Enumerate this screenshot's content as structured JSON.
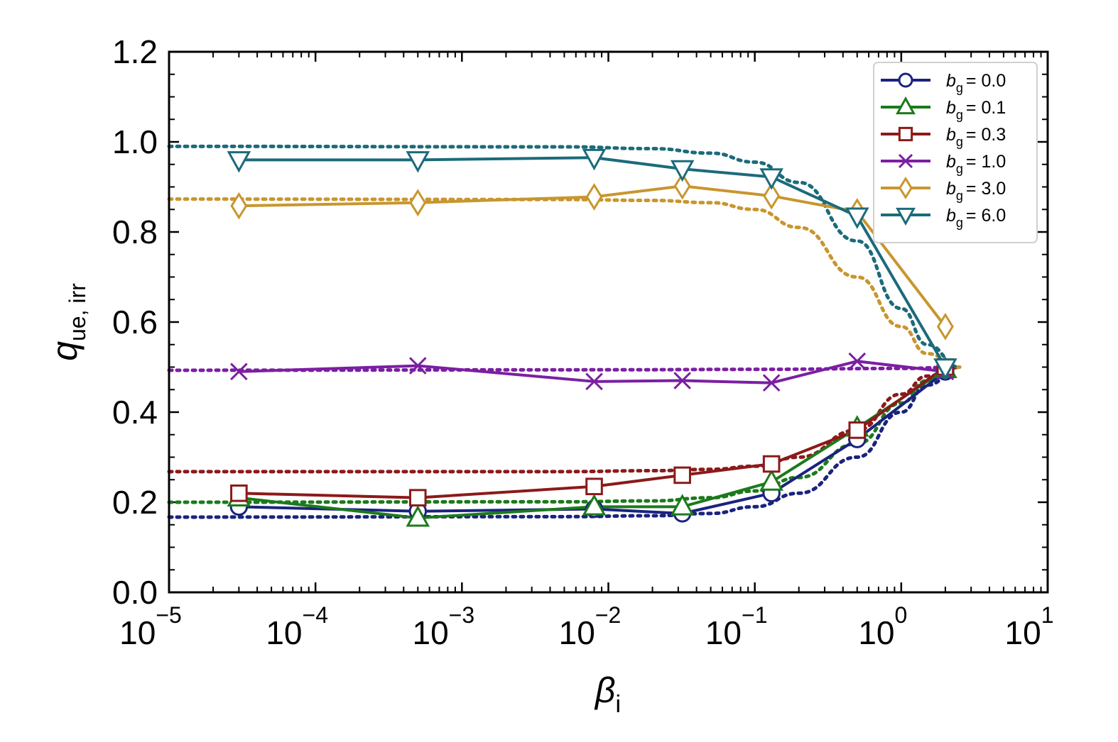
{
  "chart_data": {
    "type": "line",
    "xscale": "log",
    "xlim": [
      1e-05,
      10
    ],
    "ylim": [
      0.0,
      1.2
    ],
    "xlabel": "βi",
    "ylabel": "que, irr",
    "xlabel_parts": {
      "main": "β",
      "sub": "i"
    },
    "ylabel_parts": {
      "main": "q",
      "sub": "ue, irr"
    },
    "x_ticks": [
      {
        "base": "10",
        "exp": "−5"
      },
      {
        "base": "10",
        "exp": "−4"
      },
      {
        "base": "10",
        "exp": "−3"
      },
      {
        "base": "10",
        "exp": "−2"
      },
      {
        "base": "10",
        "exp": "−1"
      },
      {
        "base": "10",
        "exp": "0"
      },
      {
        "base": "10",
        "exp": "1"
      }
    ],
    "y_ticks": [
      "0.0",
      "0.2",
      "0.4",
      "0.6",
      "0.8",
      "1.0",
      "1.2"
    ],
    "grid": false,
    "legend_position": "top-right",
    "x": [
      3e-05,
      0.0005,
      0.008,
      0.032,
      0.13,
      0.5,
      2.0
    ],
    "series": [
      {
        "name": "bg = 0.0",
        "legend_main": "b",
        "legend_sub": "g",
        "legend_value": "= 0.0",
        "color": "#1a237e",
        "marker": "circle",
        "values": [
          0.19,
          0.18,
          0.185,
          0.175,
          0.22,
          0.34,
          0.49
        ],
        "model": {
          "x": [
            1e-05,
            0.005,
            0.02,
            0.05,
            0.1,
            0.2,
            0.5,
            1.0,
            1.5,
            2.5
          ],
          "values": [
            0.167,
            0.168,
            0.17,
            0.175,
            0.19,
            0.22,
            0.3,
            0.4,
            0.46,
            0.5
          ]
        }
      },
      {
        "name": "bg = 0.1",
        "legend_main": "b",
        "legend_sub": "g",
        "legend_value": "= 0.1",
        "color": "#1b7a1b",
        "marker": "triangle-up",
        "values": [
          0.21,
          0.165,
          0.19,
          0.19,
          0.245,
          0.365,
          0.495
        ],
        "model": {
          "x": [
            1e-05,
            0.005,
            0.02,
            0.05,
            0.1,
            0.2,
            0.5,
            1.0,
            1.5,
            2.5
          ],
          "values": [
            0.2,
            0.201,
            0.203,
            0.21,
            0.225,
            0.255,
            0.33,
            0.42,
            0.47,
            0.5
          ]
        }
      },
      {
        "name": "bg = 0.3",
        "legend_main": "b",
        "legend_sub": "g",
        "legend_value": "= 0.3",
        "color": "#8b1a1a",
        "marker": "square",
        "values": [
          0.22,
          0.21,
          0.235,
          0.26,
          0.285,
          0.36,
          0.5
        ],
        "model": {
          "x": [
            1e-05,
            0.005,
            0.02,
            0.05,
            0.1,
            0.2,
            0.5,
            1.0,
            1.5,
            2.5
          ],
          "values": [
            0.268,
            0.268,
            0.27,
            0.273,
            0.28,
            0.3,
            0.36,
            0.44,
            0.48,
            0.5
          ]
        }
      },
      {
        "name": "bg = 1.0",
        "legend_main": "b",
        "legend_sub": "g",
        "legend_value": "= 1.0",
        "color": "#7b1fa2",
        "marker": "x",
        "values": [
          0.49,
          0.503,
          0.468,
          0.47,
          0.465,
          0.513,
          0.49
        ],
        "model": {
          "x": [
            1e-05,
            0.01,
            0.1,
            1.0,
            2.5
          ],
          "values": [
            0.493,
            0.494,
            0.495,
            0.497,
            0.5
          ]
        }
      },
      {
        "name": "bg = 3.0",
        "legend_main": "b",
        "legend_sub": "g",
        "legend_value": "= 3.0",
        "color": "#c8962e",
        "marker": "diamond",
        "values": [
          0.858,
          0.865,
          0.878,
          0.902,
          0.88,
          0.845,
          0.59
        ],
        "model": {
          "x": [
            1e-05,
            0.005,
            0.02,
            0.05,
            0.1,
            0.2,
            0.5,
            1.0,
            1.5,
            2.5
          ],
          "values": [
            0.873,
            0.872,
            0.87,
            0.865,
            0.85,
            0.81,
            0.7,
            0.59,
            0.53,
            0.5
          ]
        }
      },
      {
        "name": "bg = 6.0",
        "legend_main": "b",
        "legend_sub": "g",
        "legend_value": "= 6.0",
        "color": "#1b6b7a",
        "marker": "triangle-down",
        "values": [
          0.96,
          0.96,
          0.965,
          0.94,
          0.922,
          0.835,
          0.5
        ],
        "model": {
          "x": [
            1e-05,
            0.005,
            0.02,
            0.05,
            0.1,
            0.2,
            0.5,
            1.0,
            1.5,
            2.5
          ],
          "values": [
            0.99,
            0.989,
            0.985,
            0.975,
            0.955,
            0.91,
            0.78,
            0.63,
            0.55,
            0.5
          ]
        }
      }
    ]
  }
}
